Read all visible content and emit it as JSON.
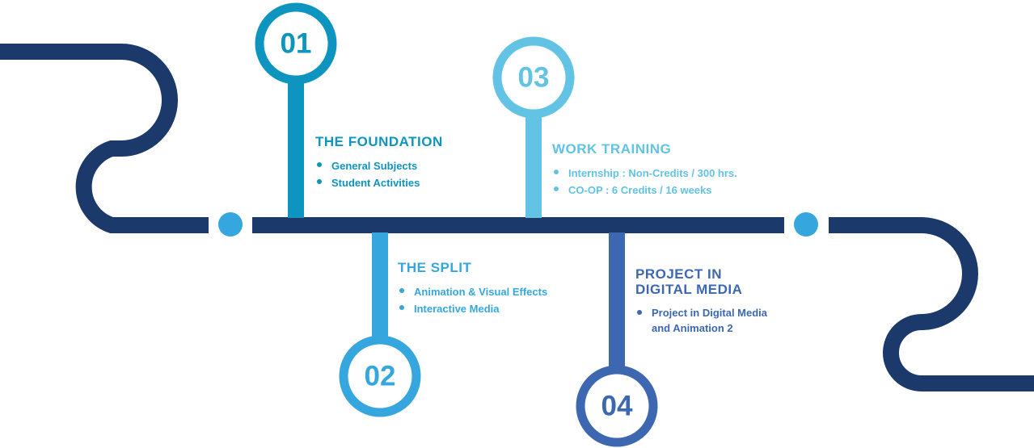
{
  "colors": {
    "navy": "#1b3a6b",
    "stage1": "#0e95bf",
    "stage2": "#36a7de",
    "stage3": "#62c3e4",
    "stage4": "#3d67b1",
    "dot": "#36a7de"
  },
  "stages": [
    {
      "number": "01",
      "title": "THE FOUNDATION",
      "items": [
        "General Subjects",
        "Student Activities"
      ]
    },
    {
      "number": "02",
      "title": "THE SPLIT",
      "items": [
        "Animation & Visual Effects",
        "Interactive Media"
      ]
    },
    {
      "number": "03",
      "title": "WORK TRAINING",
      "items": [
        "Internship : Non-Credits / 300 hrs.",
        "CO-OP : 6 Credits / 16 weeks"
      ]
    },
    {
      "number": "04",
      "title_lines": [
        "PROJECT IN",
        "DIGITAL MEDIA"
      ],
      "items": [
        "Project in Digital Media",
        "and Animation 2"
      ]
    }
  ]
}
